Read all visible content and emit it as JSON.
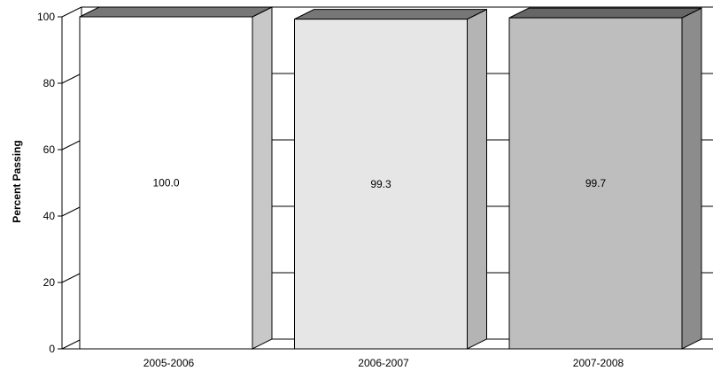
{
  "chart_data": {
    "type": "bar",
    "title": "",
    "xlabel": "",
    "ylabel": "Percent Passing",
    "ylim": [
      0,
      100
    ],
    "yticks": [
      "0",
      "20",
      "40",
      "60",
      "80",
      "100"
    ],
    "grid": true,
    "legend": "none",
    "categories": [
      "2005-2006",
      "2006-2007",
      "2007-2008"
    ],
    "values": [
      100.0,
      99.3,
      99.7
    ],
    "value_labels": [
      "100.0",
      "99.3",
      "99.7"
    ],
    "colors": {
      "bars": [
        "#ffffff",
        "#e6e6e6",
        "#bebebe"
      ],
      "bar_sides": [
        "#c8c8c8",
        "#b4b4b4",
        "#8c8c8c"
      ],
      "bar_tops": [
        "#777777",
        "#777777",
        "#666666"
      ]
    }
  }
}
